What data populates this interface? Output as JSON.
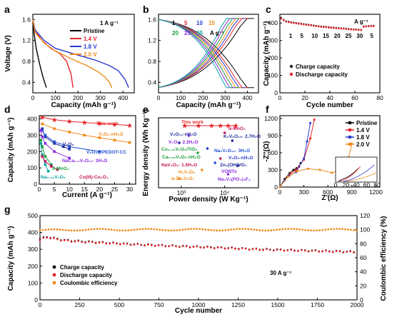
{
  "chart_data": [
    {
      "panel": "a",
      "type": "line",
      "xlabel": "Capacity (mAh g⁻¹)",
      "ylabel": "Voltage (V)",
      "xlim": [
        0,
        450
      ],
      "ylim": [
        0.2,
        1.7
      ],
      "xticks": [
        0,
        100,
        200,
        300,
        400
      ],
      "yticks": [
        0.4,
        0.8,
        1.2,
        1.6
      ],
      "annotation": "1 A g⁻¹",
      "series": [
        {
          "name": "Pristine",
          "color": "#000000",
          "x": [
            0,
            5,
            15,
            30,
            45,
            60
          ],
          "y": [
            1.6,
            1.35,
            1.05,
            0.75,
            0.5,
            0.3
          ]
        },
        {
          "name": "1.4 V",
          "color": "#e8242a",
          "x": [
            0,
            10,
            40,
            80,
            120,
            150,
            170,
            178
          ],
          "y": [
            1.6,
            1.4,
            1.2,
            1.05,
            0.95,
            0.8,
            0.55,
            0.3
          ]
        },
        {
          "name": "1.8 V",
          "color": "#2b3bd1",
          "x": [
            0,
            10,
            50,
            100,
            200,
            280,
            340,
            380,
            410,
            425
          ],
          "y": [
            1.6,
            1.4,
            1.2,
            1.05,
            0.92,
            0.82,
            0.72,
            0.62,
            0.45,
            0.3
          ]
        },
        {
          "name": "2.0 V",
          "color": "#f08a1c",
          "x": [
            0,
            10,
            50,
            100,
            170,
            240,
            290,
            320,
            340,
            350
          ],
          "y": [
            1.6,
            1.35,
            1.15,
            1.0,
            0.85,
            0.72,
            0.6,
            0.5,
            0.4,
            0.3
          ]
        }
      ]
    },
    {
      "panel": "b",
      "type": "line",
      "xlabel": "Capacity (mAh g⁻¹)",
      "ylabel": "",
      "xlim": [
        0,
        450
      ],
      "ylim": [
        0.2,
        1.7
      ],
      "xticks": [
        0,
        100,
        200,
        300,
        400
      ],
      "yticks": [
        0.4,
        0.8,
        1.2,
        1.6
      ],
      "rate_labels_row1": [
        "1",
        "5",
        "10",
        "15"
      ],
      "rate_labels_row2": [
        "20",
        "25",
        "30"
      ],
      "rate_unit": "A g⁻¹",
      "rate_colors_row1": [
        "#000000",
        "#e8242a",
        "#2b3bd1",
        "#f08a1c"
      ],
      "rate_colors_row2": [
        "#1a9c3a",
        "#8a2be2",
        "#0aa3a3"
      ],
      "charge_end_capacity": [
        430,
        405,
        390,
        375,
        360,
        345,
        330
      ],
      "curve_colors": [
        "#000000",
        "#e8242a",
        "#2b3bd1",
        "#f08a1c",
        "#1a9c3a",
        "#8a2be2",
        "#0aa3a3"
      ]
    },
    {
      "panel": "c",
      "type": "scatter",
      "xlabel": "Cycle number",
      "ylabel": "Capacity (mAh g⁻¹)",
      "xlim": [
        0,
        80
      ],
      "ylim": [
        0,
        450
      ],
      "xticks": [
        0,
        20,
        40,
        60,
        80
      ],
      "yticks": [
        0,
        100,
        200,
        300,
        400
      ],
      "unit_label": "A g⁻¹",
      "rate_segment_labels": [
        "1",
        "5",
        "10",
        "15",
        "20",
        "25",
        "30",
        "5"
      ],
      "legend": [
        "Charge capacity",
        "Discharge capacity"
      ],
      "series": [
        {
          "name": "Charge capacity",
          "color": "#222222",
          "x": [
            1,
            3,
            5,
            7,
            9,
            11,
            13,
            15,
            17,
            19,
            21,
            23,
            25,
            27,
            29,
            31,
            33,
            35,
            37,
            39,
            41,
            43,
            45,
            47,
            49,
            51,
            53,
            55,
            57,
            59,
            61,
            63,
            65,
            67,
            69,
            71,
            73,
            75
          ],
          "y": [
            430,
            418,
            410,
            408,
            405,
            402,
            400,
            398,
            396,
            394,
            392,
            390,
            388,
            386,
            384,
            382,
            380,
            379,
            378,
            376,
            375,
            374,
            372,
            371,
            370,
            369,
            368,
            366,
            365,
            364,
            363,
            362,
            361,
            380,
            382,
            383,
            384,
            384
          ]
        },
        {
          "name": "Discharge capacity",
          "color": "#e8242a",
          "x": [
            1,
            3,
            5,
            7,
            9,
            11,
            13,
            15,
            17,
            19,
            21,
            23,
            25,
            27,
            29,
            31,
            33,
            35,
            37,
            39,
            41,
            43,
            45,
            47,
            49,
            51,
            53,
            55,
            57,
            59,
            61,
            63,
            65,
            67,
            69,
            71,
            73,
            75
          ],
          "y": [
            425,
            415,
            408,
            405,
            402,
            400,
            398,
            396,
            394,
            392,
            390,
            388,
            386,
            384,
            382,
            380,
            378,
            377,
            376,
            374,
            373,
            372,
            370,
            369,
            368,
            367,
            366,
            364,
            363,
            362,
            361,
            360,
            359,
            378,
            380,
            381,
            382,
            382
          ]
        }
      ]
    },
    {
      "panel": "d",
      "type": "scatter",
      "xlabel": "Current (A g⁻¹)",
      "ylabel": "Capacity (mAh g⁻¹)",
      "xlim": [
        0,
        32
      ],
      "ylim": [
        0,
        420
      ],
      "xticks": [
        0,
        5,
        10,
        15,
        20,
        25,
        30
      ],
      "yticks": [
        0,
        100,
        200,
        300,
        400
      ],
      "series": [
        {
          "name": "This work",
          "color": "#e8242a",
          "x": [
            1,
            5,
            10,
            15,
            20,
            25,
            30
          ],
          "y": [
            410,
            395,
            385,
            378,
            372,
            366,
            360
          ]
        },
        {
          "name": "V₂O₅·nH₂O",
          "color": "#f08a1c",
          "x": [
            1,
            5,
            10,
            15,
            20,
            25,
            30
          ],
          "y": [
            370,
            340,
            320,
            300,
            285,
            270,
            255
          ]
        },
        {
          "name": "V₂O₅",
          "color": "#1f2a9c",
          "x": [
            1,
            2,
            5,
            8,
            10
          ],
          "y": [
            340,
            290,
            250,
            230,
            215
          ]
        },
        {
          "name": "V₂O₅@PEDOT-CC",
          "color": "#1f4fd1",
          "x": [
            1,
            2,
            5,
            10,
            20
          ],
          "y": [
            330,
            300,
            260,
            230,
            200
          ]
        },
        {
          "name": "NaCa₀.₆V₆O₁₆· 3H₂O",
          "color": "#8a2be2",
          "x": [
            0.5,
            1,
            2,
            5,
            10
          ],
          "y": [
            330,
            290,
            250,
            200,
            160
          ]
        },
        {
          "name": "δ-MnO₂",
          "color": "#1a9c3a",
          "x": [
            0.5,
            1,
            2,
            4
          ],
          "y": [
            270,
            230,
            170,
            120
          ]
        },
        {
          "name": "Na₀.₃₃V₂O₅",
          "color": "#0aa3a3",
          "x": [
            0.5,
            1,
            2,
            3
          ],
          "y": [
            250,
            180,
            120,
            80
          ]
        },
        {
          "name": "Co(III)-Co₃O₄",
          "color": "#c2185b",
          "x": [
            1,
            2,
            4,
            6
          ],
          "y": [
            170,
            140,
            110,
            90
          ]
        }
      ],
      "labels": [
        {
          "text": "This work",
          "color": "#e8242a"
        },
        {
          "text": "V₂O₅·nH₂O",
          "color": "#f08a1c"
        },
        {
          "text": "V₂O₅",
          "color": "#1f2a9c"
        },
        {
          "text": "V₂O₅@PEDOT-CC",
          "color": "#1f4fd1"
        },
        {
          "text": "NaCa₀.₆V₆O₁₆· 3H₂O",
          "color": "#8a2be2"
        },
        {
          "text": "δ-MnO₂",
          "color": "#1a9c3a"
        },
        {
          "text": "Na₀.₃₃V₂O₅",
          "color": "#0aa3a3"
        },
        {
          "text": "Co(III)-Co₃O₄",
          "color": "#c2185b"
        }
      ]
    },
    {
      "panel": "e",
      "type": "scatter",
      "xlabel": "Power density (W Kg⁻¹)",
      "ylabel": "Energy density (Wh Kg⁻¹)",
      "xscale": "log",
      "xlim": [
        300,
        60000
      ],
      "xticks": [
        1000,
        10000
      ],
      "xtick_labels": [
        "10³",
        "10⁴"
      ],
      "labels": [
        {
          "text": "This work",
          "color": "#e8242a"
        },
        {
          "text": "α-MnO₂",
          "color": "#c2185b"
        },
        {
          "text": "V₆O₁₃·nH₂O",
          "color": "#1f2a9c"
        },
        {
          "text": "K₂V₆O₁₆· 2.7H₂O",
          "color": "#1f2a9c"
        },
        {
          "text": "V₂O₅· 2.2H₂O",
          "color": "#8a2be2"
        },
        {
          "text": "Co₀.₂₃V₂O₅/TiO₂",
          "color": "#1a9c3a"
        },
        {
          "text": "Na₂V₆O₁₆· 3H₂O",
          "color": "#1f4fd1"
        },
        {
          "text": "Ca₀.₂₅V₂O₅·nH₂O",
          "color": "#1a9c3a"
        },
        {
          "text": "V₂O₅·nH₂O",
          "color": "#2b3bd1"
        },
        {
          "text": "NaV₃O₈· 1.5H₂O",
          "color": "#c2185b"
        },
        {
          "text": "Zn₃(OH)VO₄",
          "color": "#1f2a9c"
        },
        {
          "text": "H₂V₃O₈",
          "color": "#f08a1c"
        },
        {
          "text": "VONTs",
          "color": "#8a2be2"
        },
        {
          "text": "α-Zn₂V₂O₇",
          "color": "#f08a1c"
        },
        {
          "text": "Na₃V₂(PO₄)₂F₃",
          "color": "#8a2be2"
        }
      ]
    },
    {
      "panel": "f",
      "type": "line",
      "xlabel": "Z'(Ω)",
      "ylabel": "-Z''(Ω)",
      "xlim": [
        0,
        1250
      ],
      "ylim": [
        0,
        1250
      ],
      "xticks": [
        0,
        300,
        600,
        900,
        1200
      ],
      "yticks": [
        0,
        300,
        600,
        900,
        1200
      ],
      "inset_xticks": [
        0,
        20,
        40,
        60,
        80
      ],
      "series": [
        {
          "name": "Pristine",
          "color": "#000000",
          "x": [
            0,
            60,
            120,
            170,
            210,
            240,
            260
          ],
          "y": [
            0,
            140,
            240,
            300,
            330,
            360,
            420
          ]
        },
        {
          "name": "1.4 V",
          "color": "#e8242a",
          "x": [
            0,
            60,
            120,
            200,
            300,
            380,
            430
          ],
          "y": [
            0,
            120,
            220,
            300,
            480,
            850,
            1180
          ]
        },
        {
          "name": "1.8 V",
          "color": "#2b3bd1",
          "x": [
            0,
            60,
            120,
            200,
            300,
            340,
            380
          ],
          "y": [
            0,
            120,
            200,
            260,
            500,
            800,
            1120
          ]
        },
        {
          "name": "2.0 V",
          "color": "#f08a1c",
          "x": [
            0,
            100,
            220,
            350,
            500,
            650,
            760,
            860,
            900
          ],
          "y": [
            0,
            180,
            280,
            320,
            300,
            250,
            300,
            520,
            760
          ]
        }
      ]
    },
    {
      "panel": "g",
      "type": "scatter",
      "xlabel": "Cycle number",
      "ylabel": "Capacity (mAh g⁻¹)",
      "y2label": "Coulombic efficiency (%)",
      "xlim": [
        0,
        2000
      ],
      "ylim": [
        0,
        500
      ],
      "y2lim": [
        0,
        120
      ],
      "xticks": [
        0,
        250,
        500,
        750,
        1000,
        1250,
        1500,
        1750,
        2000
      ],
      "yticks": [
        0,
        100,
        200,
        300,
        400,
        500
      ],
      "y2ticks": [
        0,
        20,
        40,
        60,
        80,
        100,
        120
      ],
      "annotation": "30 A g⁻¹",
      "legend": [
        "Charge capacity",
        "Discharge capacity",
        "Coulombic efficiency"
      ],
      "series": [
        {
          "name": "Charge capacity",
          "color": "#111111",
          "x": [
            0,
            40,
            80,
            150,
            250,
            400,
            600,
            800,
            1000,
            1200,
            1400,
            1600,
            1800,
            2000
          ],
          "y": [
            360,
            375,
            368,
            355,
            348,
            340,
            330,
            322,
            315,
            308,
            300,
            295,
            290,
            285
          ]
        },
        {
          "name": "Discharge capacity",
          "color": "#e8242a",
          "x": [
            0,
            40,
            80,
            150,
            250,
            400,
            600,
            800,
            1000,
            1200,
            1400,
            1600,
            1800,
            2000
          ],
          "y": [
            355,
            372,
            365,
            352,
            345,
            338,
            328,
            320,
            313,
            306,
            298,
            293,
            288,
            283
          ]
        },
        {
          "name": "Coulombic efficiency",
          "color": "#f08a1c",
          "axis": "y2",
          "x": [
            0,
            250,
            500,
            750,
            1000,
            1250,
            1500,
            1750,
            2000
          ],
          "y": [
            99,
            100,
            100,
            100,
            100,
            100,
            100,
            100,
            100
          ]
        }
      ]
    }
  ]
}
